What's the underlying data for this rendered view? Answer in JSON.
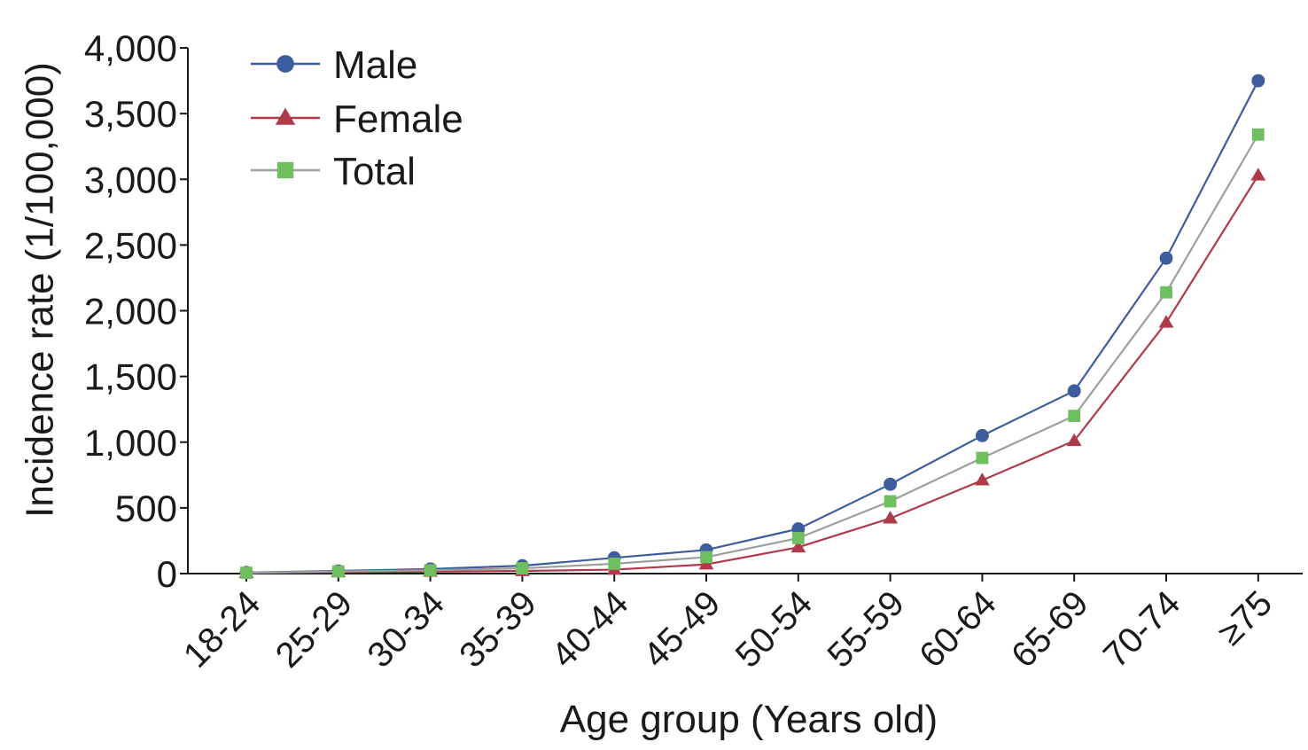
{
  "chart_data": {
    "type": "line",
    "title": "",
    "xlabel": "Age group (Years old)",
    "ylabel": "Incidence rate (1/100,000)",
    "categories": [
      "18-24",
      "25-29",
      "30-34",
      "35-39",
      "40-44",
      "45-49",
      "50-54",
      "55-59",
      "60-64",
      "65-69",
      "70-74",
      "≥75"
    ],
    "ylim": [
      0,
      4000
    ],
    "yticks": [
      0,
      500,
      1000,
      1500,
      2000,
      2500,
      3000,
      3500,
      4000
    ],
    "ytick_labels": [
      "0",
      "500",
      "1,000",
      "1,500",
      "2,000",
      "2,500",
      "3,000",
      "3,500",
      "4,000"
    ],
    "grid": false,
    "legend_position": "top-left",
    "series": [
      {
        "name": "Male",
        "marker": "circle",
        "color": "#3d5d9e",
        "values": [
          8,
          20,
          35,
          60,
          120,
          180,
          340,
          680,
          1050,
          1390,
          2400,
          3750
        ]
      },
      {
        "name": "Female",
        "marker": "triangle",
        "color": "#b03a4a",
        "values": [
          5,
          12,
          15,
          20,
          30,
          70,
          200,
          420,
          710,
          1010,
          1910,
          3030
        ]
      },
      {
        "name": "Total",
        "marker": "square",
        "color": "#6fbe5f",
        "values": [
          6,
          16,
          25,
          40,
          75,
          125,
          270,
          550,
          880,
          1200,
          2140,
          3340
        ]
      }
    ]
  }
}
